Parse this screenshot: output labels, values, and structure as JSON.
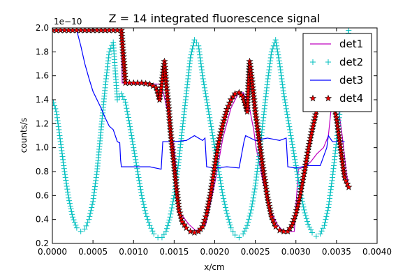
{
  "chart_data": {
    "type": "line",
    "title": "Z = 14 integrated fluorescence signal",
    "xlabel": "x/cm",
    "ylabel": "counts/s",
    "y_offset_label": "1e−10",
    "xlim": [
      0.0,
      0.004
    ],
    "ylim": [
      0.2,
      2.0
    ],
    "x_ticks": [
      "0.0000",
      "0.0005",
      "0.0010",
      "0.0015",
      "0.0020",
      "0.0025",
      "0.0030",
      "0.0035",
      "0.0040"
    ],
    "y_ticks": [
      "0.2",
      "0.4",
      "0.6",
      "0.8",
      "1.0",
      "1.2",
      "1.4",
      "1.6",
      "1.8",
      "2.0"
    ],
    "legend_position": "upper-right",
    "grid": false,
    "series": [
      {
        "name": "det1",
        "color": "#bf00bf",
        "marker": "none",
        "x": [
          0.0,
          0.00085,
          0.00086,
          0.00133,
          0.00137,
          0.00142,
          0.0015,
          0.00155,
          0.00158,
          0.00168,
          0.00176,
          0.00183,
          0.00189,
          0.00192,
          0.002,
          0.0021,
          0.0022,
          0.00228,
          0.00235,
          0.00242,
          0.00248,
          0.00251,
          0.0026,
          0.0027,
          0.00277,
          0.00283,
          0.0029,
          0.00295,
          0.00298,
          0.00303,
          0.0031,
          0.00318,
          0.00326,
          0.00334,
          0.0034,
          0.00343,
          0.00346,
          0.00352,
          0.00357,
          0.00362,
          0.00365
        ],
        "y": [
          1.98,
          1.98,
          1.54,
          1.53,
          1.45,
          1.3,
          1.0,
          0.6,
          0.45,
          0.36,
          0.31,
          0.31,
          0.36,
          0.45,
          0.7,
          1.08,
          1.33,
          1.44,
          1.46,
          1.36,
          1.15,
          1.0,
          0.7,
          0.46,
          0.36,
          0.31,
          0.3,
          0.3,
          0.3,
          0.82,
          0.84,
          0.88,
          0.95,
          1.0,
          1.1,
          1.3,
          1.47,
          1.35,
          1.1,
          0.8,
          0.67
        ]
      },
      {
        "name": "det2",
        "color": "#00bfbf",
        "marker": "plus",
        "x": [
          0.0,
          5e-05,
          0.0001,
          0.00015,
          0.0002,
          0.00025,
          0.0003,
          0.00035,
          0.0004,
          0.00045,
          0.0005,
          0.00055,
          0.0006,
          0.00065,
          0.0007,
          0.00075,
          0.0008,
          0.00085,
          0.0009,
          0.00095,
          0.001,
          0.00105,
          0.0011,
          0.00115,
          0.0012,
          0.00125,
          0.0013,
          0.00135,
          0.0014,
          0.00145,
          0.0015,
          0.00155,
          0.0016,
          0.00165,
          0.0017,
          0.00175,
          0.0018,
          0.00185,
          0.0019,
          0.00195,
          0.002,
          0.00205,
          0.0021,
          0.00215,
          0.0022,
          0.00225,
          0.0023,
          0.00235,
          0.0024,
          0.00245,
          0.0025,
          0.00255,
          0.0026,
          0.00265,
          0.0027,
          0.00275,
          0.0028,
          0.00285,
          0.0029,
          0.00295,
          0.003,
          0.00305,
          0.0031,
          0.00315,
          0.0032,
          0.00325,
          0.0033,
          0.00335,
          0.0034,
          0.00345,
          0.0035,
          0.00355,
          0.0036,
          0.00365
        ],
        "y": [
          1.4,
          1.3,
          1.05,
          0.8,
          0.58,
          0.42,
          0.33,
          0.3,
          0.32,
          0.4,
          0.55,
          0.8,
          1.15,
          1.5,
          1.8,
          1.88,
          1.4,
          1.45,
          1.38,
          1.2,
          1.0,
          0.8,
          0.6,
          0.45,
          0.35,
          0.28,
          0.25,
          0.25,
          0.3,
          0.42,
          0.6,
          0.85,
          1.15,
          1.45,
          1.75,
          1.9,
          1.85,
          1.6,
          1.4,
          1.2,
          1.0,
          0.8,
          0.6,
          0.45,
          0.33,
          0.27,
          0.25,
          0.28,
          0.35,
          0.48,
          0.68,
          0.95,
          1.25,
          1.55,
          1.8,
          1.9,
          1.7,
          1.45,
          1.25,
          1.05,
          0.85,
          0.65,
          0.48,
          0.36,
          0.29,
          0.26,
          0.28,
          0.35,
          0.5,
          0.75,
          1.05,
          1.35,
          1.65,
          1.98
        ]
      },
      {
        "name": "det3",
        "color": "#0000ff",
        "marker": "none",
        "x": [
          0.0,
          0.0003,
          0.00035,
          0.0004,
          0.00045,
          0.0005,
          0.00055,
          0.0006,
          0.00065,
          0.0007,
          0.00075,
          0.0008,
          0.00083,
          0.00084,
          0.00085,
          0.001,
          0.0012,
          0.00134,
          0.00136,
          0.0015,
          0.00165,
          0.00175,
          0.00185,
          0.00188,
          0.0019,
          0.002,
          0.00215,
          0.0023,
          0.00236,
          0.00238,
          0.0025,
          0.00265,
          0.0028,
          0.00288,
          0.0029,
          0.003,
          0.00315,
          0.0033,
          0.00338,
          0.0034,
          0.00345,
          0.00355,
          0.0036
        ],
        "y": [
          1.98,
          1.98,
          1.85,
          1.7,
          1.58,
          1.47,
          1.4,
          1.33,
          1.25,
          1.18,
          1.15,
          1.05,
          1.04,
          0.9,
          0.84,
          0.84,
          0.84,
          0.82,
          1.05,
          1.05,
          1.06,
          1.1,
          1.06,
          1.08,
          0.84,
          0.83,
          0.84,
          0.83,
          1.05,
          1.1,
          1.06,
          1.08,
          1.06,
          1.08,
          0.84,
          0.83,
          0.85,
          0.85,
          1.0,
          1.1,
          1.05,
          1.05,
          1.05
        ]
      },
      {
        "name": "det4",
        "color": "#ff0000",
        "marker": "star",
        "x": [
          0.0,
          0.0001,
          0.0002,
          0.0003,
          0.0004,
          0.0005,
          0.0006,
          0.0007,
          0.0008,
          0.00085,
          0.0009,
          0.001,
          0.0011,
          0.0012,
          0.00128,
          0.00132,
          0.00136,
          0.00138,
          0.0014,
          0.00143,
          0.00146,
          0.0015,
          0.00153,
          0.00156,
          0.0016,
          0.00165,
          0.0017,
          0.00175,
          0.0018,
          0.00185,
          0.0019,
          0.00195,
          0.002,
          0.00205,
          0.0021,
          0.00215,
          0.0022,
          0.00225,
          0.0023,
          0.00235,
          0.0024,
          0.00243,
          0.00246,
          0.0025,
          0.00255,
          0.0026,
          0.00265,
          0.0027,
          0.00275,
          0.0028,
          0.00285,
          0.0029,
          0.00295,
          0.003,
          0.00305,
          0.0031,
          0.00315,
          0.0032,
          0.00325,
          0.0033,
          0.00335,
          0.0034,
          0.00345,
          0.0035,
          0.00355,
          0.0036,
          0.00365
        ],
        "y": [
          1.98,
          1.98,
          1.98,
          1.98,
          1.98,
          1.98,
          1.98,
          1.98,
          1.98,
          1.98,
          1.54,
          1.54,
          1.54,
          1.53,
          1.5,
          1.4,
          1.6,
          1.72,
          1.55,
          1.35,
          1.1,
          0.85,
          0.65,
          0.48,
          0.38,
          0.33,
          0.3,
          0.29,
          0.3,
          0.34,
          0.45,
          0.62,
          0.85,
          1.05,
          1.2,
          1.32,
          1.4,
          1.45,
          1.46,
          1.42,
          1.3,
          1.72,
          1.55,
          1.3,
          1.05,
          0.8,
          0.58,
          0.42,
          0.34,
          0.31,
          0.3,
          0.3,
          0.35,
          0.45,
          0.6,
          0.78,
          0.98,
          1.15,
          1.3,
          1.4,
          1.45,
          1.45,
          1.4,
          1.25,
          1.0,
          0.75,
          0.67
        ]
      }
    ]
  }
}
